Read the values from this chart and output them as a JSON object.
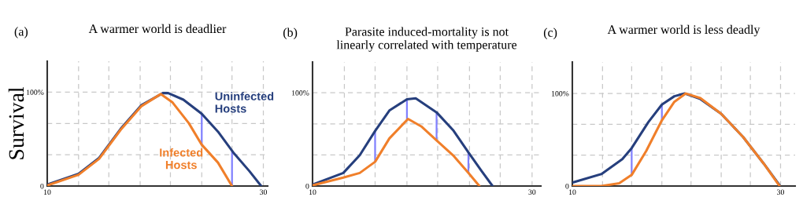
{
  "chart_data": [
    {
      "type": "line",
      "title": "A warmer world is deadlier",
      "annotations": [
        "(a)"
      ],
      "ylabel": "Survival",
      "xlim": [
        10,
        30.4
      ],
      "ylim": [
        0,
        133
      ],
      "xticks": [
        10,
        {
          "value": 12.9,
          "label": null
        },
        {
          "value": 15.7,
          "label": null
        },
        {
          "value": 18.6,
          "label": null
        },
        {
          "value": 21.4,
          "label": null
        },
        {
          "value": 24.3,
          "label": null
        },
        {
          "value": 27.1,
          "label": null
        },
        30
      ],
      "yticks": [
        0,
        {
          "value": 33.3,
          "label": null
        },
        {
          "value": 66.7,
          "label": null
        },
        {
          "value": 100,
          "label": "100%"
        }
      ],
      "grid": true,
      "legend": false,
      "series": [
        {
          "name": "Uninfected Hosts",
          "color": "#263f7d",
          "x": [
            10.1,
            12.9,
            14.8,
            16.8,
            18.7,
            20.7,
            21.2,
            22.6,
            24.3,
            25.8,
            27.2,
            28.7,
            29.8
          ],
          "values": [
            2,
            13,
            30,
            61,
            86,
            99,
            99,
            92,
            77,
            58,
            36,
            16,
            0
          ]
        },
        {
          "name": "Infected Hosts",
          "color": "#f07f2a",
          "x": [
            10.1,
            12.9,
            14.8,
            16.8,
            18.7,
            20.5,
            21.6,
            23.1,
            24.3,
            25.8,
            27.1
          ],
          "values": [
            1,
            12,
            29,
            60,
            85,
            98,
            89,
            67,
            44,
            25,
            0
          ]
        },
        {
          "color": "#8080ff",
          "x": [
            24.3,
            24.3
          ],
          "values": [
            44,
            77
          ]
        },
        {
          "color": "#8080ff",
          "x": [
            27.1,
            27.1
          ],
          "values": [
            0,
            36
          ]
        }
      ]
    },
    {
      "type": "line",
      "title": "Parasite induced-mortality is not\nlinearly correlated with temperature",
      "annotations": [
        "(b)"
      ],
      "xlim": [
        10,
        30.8
      ],
      "ylim": [
        0,
        133
      ],
      "xticks": [
        10,
        {
          "value": 12.9,
          "label": null
        },
        {
          "value": 15.7,
          "label": null
        },
        {
          "value": 18.6,
          "label": null
        },
        {
          "value": 21.4,
          "label": null
        },
        {
          "value": 24.3,
          "label": null
        },
        {
          "value": 27.1,
          "label": null
        },
        30
      ],
      "yticks": [
        0,
        {
          "value": 33.3,
          "label": null
        },
        {
          "value": 66.7,
          "label": null
        },
        {
          "value": 100,
          "label": "100%"
        }
      ],
      "grid": true,
      "legend": false,
      "series": [
        {
          "color": "#263f7d",
          "x": [
            10.1,
            12.8,
            14.3,
            15.7,
            17.0,
            18.6,
            19.4,
            21.3,
            22.8,
            24.2,
            25.4,
            26.4
          ],
          "values": [
            2,
            14,
            33,
            59,
            81,
            93,
            94,
            79,
            60,
            36,
            16,
            0
          ]
        },
        {
          "color": "#f07f2a",
          "x": [
            10.1,
            12.8,
            14.3,
            15.7,
            17.0,
            18.7,
            19.9,
            21.3,
            22.8,
            24.2,
            25.2
          ],
          "values": [
            1,
            9,
            14,
            26,
            51,
            72,
            64,
            49,
            33,
            14,
            0
          ]
        },
        {
          "color": "#8080ff",
          "x": [
            15.7,
            15.7
          ],
          "values": [
            26,
            59
          ]
        },
        {
          "color": "#8080ff",
          "x": [
            18.6,
            18.6
          ],
          "values": [
            72,
            93
          ]
        },
        {
          "color": "#8080ff",
          "x": [
            21.3,
            21.3
          ],
          "values": [
            49,
            79
          ]
        },
        {
          "color": "#8080ff",
          "x": [
            24.2,
            24.2
          ],
          "values": [
            14,
            36
          ]
        }
      ]
    },
    {
      "type": "line",
      "title": "A warmer world is less deadly",
      "annotations": [
        "(c)"
      ],
      "xlim": [
        10,
        31.4
      ],
      "ylim": [
        0,
        134
      ],
      "xticks": [
        10,
        {
          "value": 12.9,
          "label": null
        },
        {
          "value": 15.7,
          "label": null
        },
        {
          "value": 18.6,
          "label": null
        },
        {
          "value": 21.4,
          "label": null
        },
        {
          "value": 24.3,
          "label": null
        },
        {
          "value": 27.1,
          "label": null
        },
        30
      ],
      "yticks": [
        0,
        {
          "value": 33.3,
          "label": null
        },
        {
          "value": 66.7,
          "label": null
        },
        {
          "value": 100,
          "label": "100%"
        }
      ],
      "grid": true,
      "legend": false,
      "series": [
        {
          "color": "#263f7d",
          "x": [
            10.1,
            12.8,
            14.8,
            15.7,
            17.3,
            18.6,
            19.8,
            20.8,
            22.3,
            24.3,
            26.4,
            28.4,
            29.9
          ],
          "values": [
            4,
            13,
            29,
            41,
            69,
            88,
            97,
            100,
            94,
            78,
            53,
            24,
            1
          ]
        },
        {
          "color": "#f07f2a",
          "x": [
            10.1,
            12.8,
            14.5,
            15.7,
            17.1,
            18.6,
            19.8,
            20.9,
            22.3,
            24.3,
            26.4,
            28.4,
            29.9
          ],
          "values": [
            0,
            0,
            3,
            12,
            38,
            71,
            91,
            100,
            95,
            78,
            53,
            24,
            0
          ]
        },
        {
          "color": "#8080ff",
          "x": [
            15.7,
            15.7
          ],
          "values": [
            12,
            41
          ]
        },
        {
          "color": "#8080ff",
          "x": [
            18.6,
            18.6
          ],
          "values": [
            71,
            88
          ]
        }
      ]
    }
  ]
}
